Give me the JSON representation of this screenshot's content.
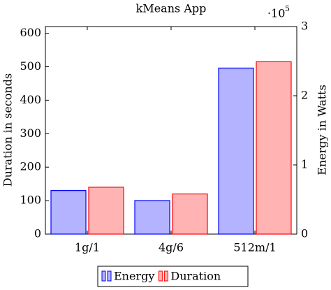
{
  "chart_data": {
    "type": "bar",
    "title": "kMeans App",
    "y_label": "Duration in seconds",
    "y2_label": "Energy in Watts",
    "y2_scale_base": "·10",
    "y2_scale_exponent": "5",
    "categories": [
      "1g/1",
      "4g/6",
      "512m/1"
    ],
    "series": [
      {
        "name": "Energy",
        "color": "#b3b3ff",
        "edge_color": "#0000ff",
        "axis": "y2",
        "values": [
          63000,
          48500,
          240000
        ]
      },
      {
        "name": "Duration",
        "color": "#ffb3b3",
        "edge_color": "#ff0000",
        "values": [
          140,
          120,
          515
        ]
      }
    ],
    "ylim": [
      0,
      620
    ],
    "yticks": [
      0,
      100,
      200,
      300,
      400,
      500,
      600
    ],
    "y2lim": [
      0,
      300000
    ],
    "y2ticks": [
      0,
      {
        "value": 100000,
        "label": "1"
      },
      {
        "value": 200000,
        "label": "2"
      },
      {
        "value": 300000,
        "label": "3"
      }
    ],
    "legend": "bottom",
    "grid": false
  }
}
